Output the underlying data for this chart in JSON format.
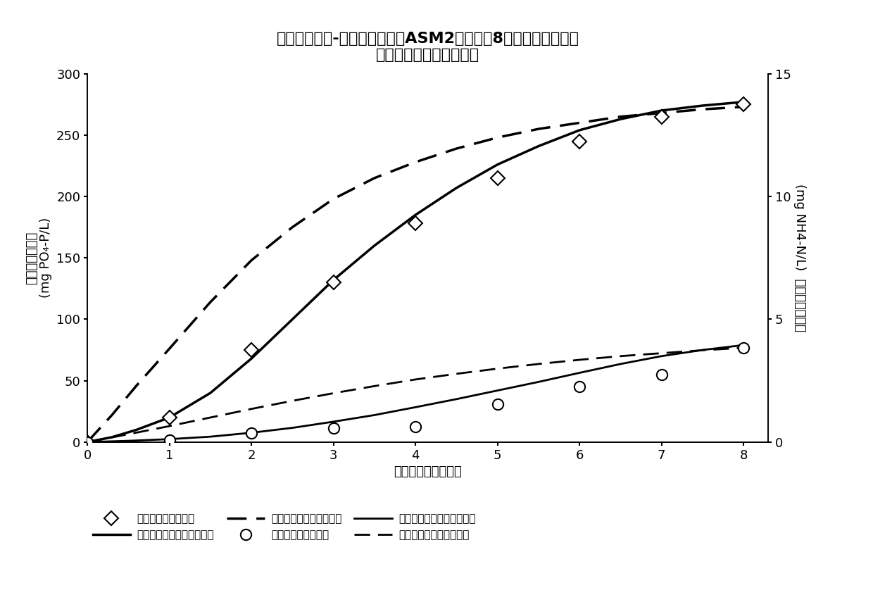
{
  "title_line1": "阶段细胞维护-凋亡模型与传统ASM2模型模拟8天长时间厌氧饥饿",
  "title_line2": "实验结果与实测值的比较",
  "xlabel": "厌氧饥饿时间（天）",
  "ylabel_left": "游离磷酸根浓度 (mg PO₄-P/L)",
  "ylabel_right": "游离氨态氮浓度 (mg NH4-N/L)",
  "ylabel_right_cn": "游离氨态氮浓度",
  "x_ticks": [
    0,
    1,
    2,
    3,
    4,
    5,
    6,
    7,
    8
  ],
  "ylim_left": [
    0,
    300
  ],
  "ylim_right": [
    0,
    15
  ],
  "yticks_left": [
    0,
    50,
    100,
    150,
    200,
    250,
    300
  ],
  "yticks_right": [
    0,
    5,
    10,
    15
  ],
  "phosphate_measured_x": [
    0,
    1,
    2,
    3,
    4,
    5,
    6,
    7,
    8
  ],
  "phosphate_measured_y": [
    0,
    20,
    75,
    130,
    178,
    215,
    245,
    265,
    275
  ],
  "phosphate_invention_x": [
    0,
    0.3,
    0.6,
    1,
    1.5,
    2,
    2.5,
    3,
    3.5,
    4,
    4.5,
    5,
    5.5,
    6,
    6.5,
    7,
    7.5,
    8
  ],
  "phosphate_invention_y": [
    0,
    4,
    10,
    20,
    40,
    68,
    100,
    132,
    160,
    185,
    207,
    226,
    241,
    254,
    263,
    270,
    274,
    277
  ],
  "phosphate_traditional_x": [
    0,
    0.3,
    0.6,
    1,
    1.5,
    2,
    2.5,
    3,
    3.5,
    4,
    4.5,
    5,
    5.5,
    6,
    6.5,
    7,
    7.5,
    8
  ],
  "phosphate_traditional_y": [
    0,
    22,
    46,
    76,
    114,
    148,
    175,
    198,
    215,
    228,
    239,
    248,
    255,
    260,
    265,
    268,
    271,
    273
  ],
  "ammonia_measured_x": [
    0,
    1,
    2,
    3,
    4,
    5,
    6,
    7,
    8
  ],
  "ammonia_measured_y": [
    0,
    0.08,
    0.38,
    0.58,
    0.63,
    1.55,
    2.25,
    2.75,
    3.85
  ],
  "ammonia_invention_x": [
    0,
    0.5,
    1,
    1.5,
    2,
    2.5,
    3,
    3.5,
    4,
    4.5,
    5,
    5.5,
    6,
    6.5,
    7,
    7.5,
    8
  ],
  "ammonia_invention_y": [
    0,
    0.05,
    0.12,
    0.22,
    0.38,
    0.58,
    0.83,
    1.1,
    1.42,
    1.75,
    2.1,
    2.45,
    2.82,
    3.18,
    3.5,
    3.75,
    3.95
  ],
  "ammonia_traditional_x": [
    0,
    0.5,
    1,
    1.5,
    2,
    2.5,
    3,
    3.5,
    4,
    4.5,
    5,
    5.5,
    6,
    6.5,
    7,
    7.5,
    8
  ],
  "ammonia_traditional_y": [
    0,
    0.32,
    0.65,
    1.0,
    1.35,
    1.68,
    1.99,
    2.28,
    2.55,
    2.78,
    2.99,
    3.18,
    3.35,
    3.5,
    3.62,
    3.74,
    3.84
  ],
  "background_color": "#ffffff",
  "line_color": "#000000",
  "title_fontsize": 16,
  "label_fontsize": 13,
  "tick_fontsize": 13,
  "legend_fontsize": 11
}
